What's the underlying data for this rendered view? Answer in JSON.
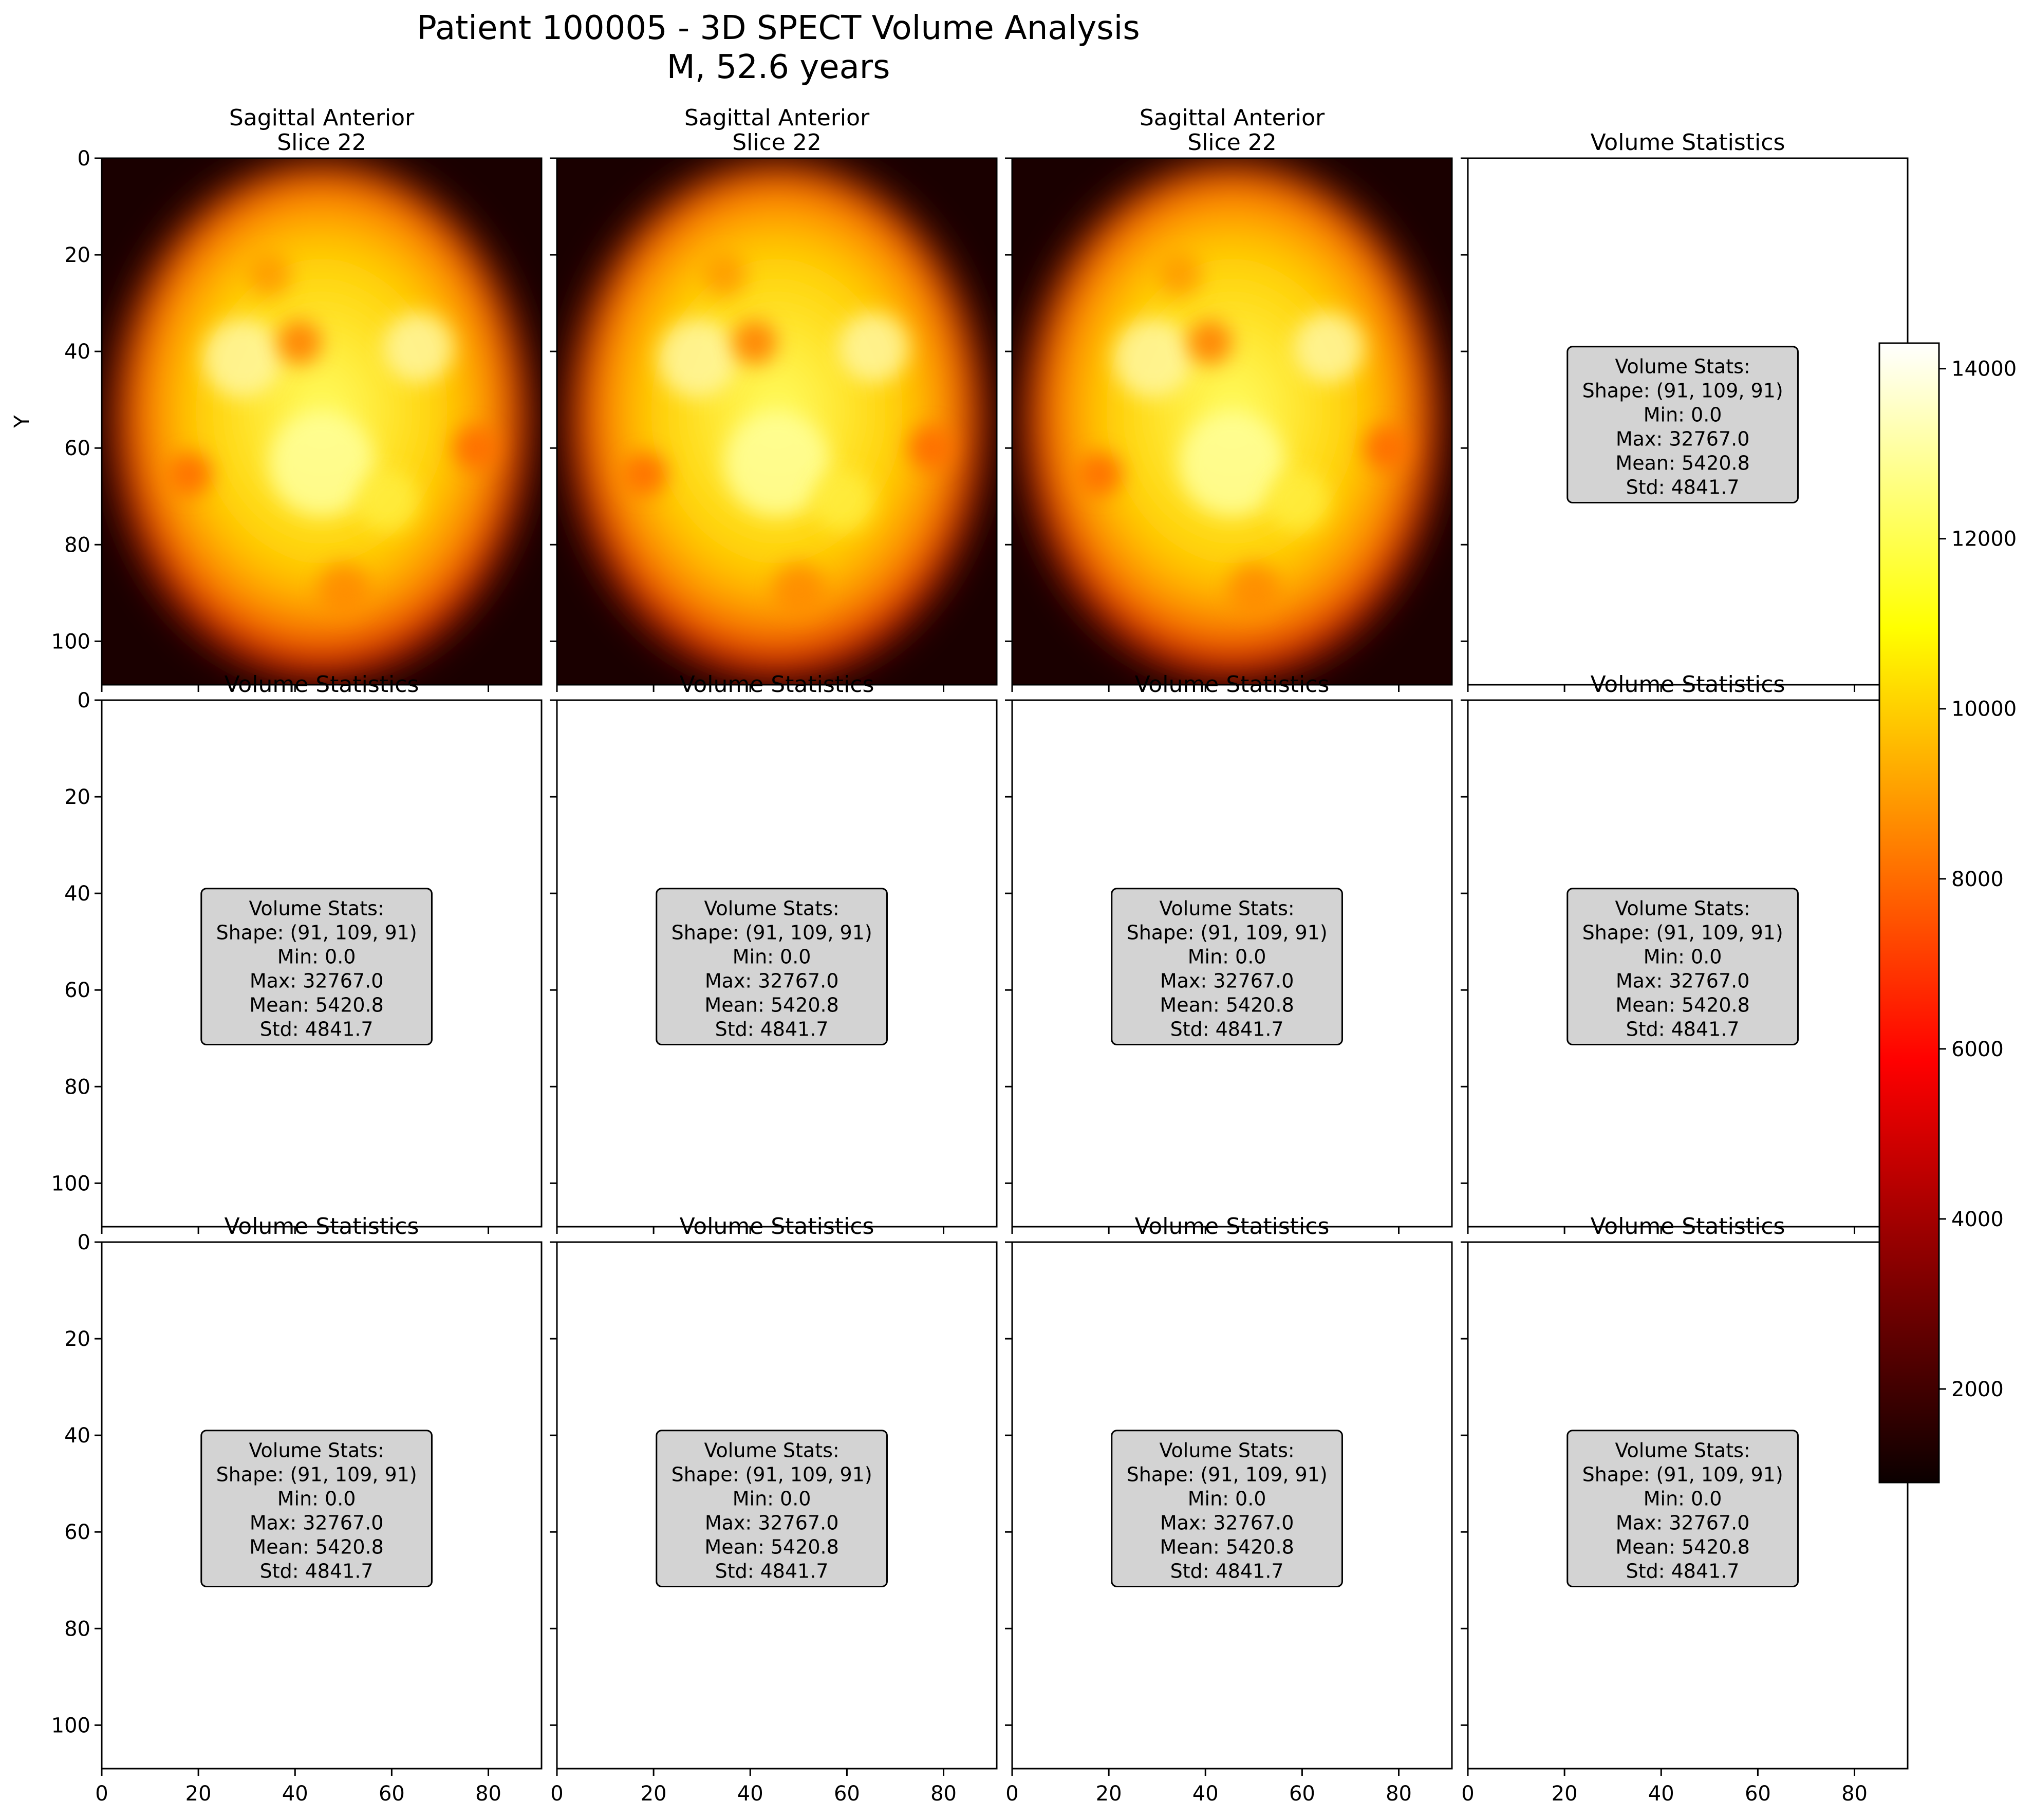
{
  "figure": {
    "title_line1": "Patient 100005 - 3D SPECT Volume Analysis",
    "title_line2": "M, 52.6 years"
  },
  "chart_data": [
    {
      "type": "heatmap",
      "panel": "r0c0",
      "title": [
        "Sagittal Anterior",
        "Slice 22"
      ],
      "ylabel": "Y",
      "xlim": [
        0,
        91
      ],
      "ylim": [
        109,
        0
      ],
      "yticks": [
        0,
        20,
        40,
        60,
        80,
        100
      ],
      "xticks": [],
      "colormap": "hot"
    },
    {
      "type": "heatmap",
      "panel": "r0c1",
      "title": [
        "Sagittal Anterior",
        "Slice 22"
      ],
      "xlim": [
        0,
        91
      ],
      "ylim": [
        109,
        0
      ],
      "colormap": "hot"
    },
    {
      "type": "heatmap",
      "panel": "r0c2",
      "title": [
        "Sagittal Anterior",
        "Slice 22"
      ],
      "xlim": [
        0,
        91
      ],
      "ylim": [
        109,
        0
      ],
      "colormap": "hot"
    },
    {
      "type": "table",
      "panel": "r0c3",
      "title": [
        "Volume Statistics"
      ]
    },
    {
      "type": "table",
      "panel": "r1c0",
      "title": [
        "Volume Statistics"
      ],
      "yticks": [
        0,
        20,
        40,
        60,
        80,
        100
      ]
    },
    {
      "type": "table",
      "panel": "r1c1",
      "title": [
        "Volume Statistics"
      ]
    },
    {
      "type": "table",
      "panel": "r1c2",
      "title": [
        "Volume Statistics"
      ]
    },
    {
      "type": "table",
      "panel": "r1c3",
      "title": [
        "Volume Statistics"
      ]
    },
    {
      "type": "table",
      "panel": "r2c0",
      "title": [
        "Volume Statistics"
      ],
      "yticks": [
        0,
        20,
        40,
        60,
        80,
        100
      ],
      "xticks": [
        0,
        20,
        40,
        60,
        80
      ]
    },
    {
      "type": "table",
      "panel": "r2c1",
      "title": [
        "Volume Statistics"
      ],
      "xticks": [
        0,
        20,
        40,
        60,
        80
      ]
    },
    {
      "type": "table",
      "panel": "r2c2",
      "title": [
        "Volume Statistics"
      ],
      "xticks": [
        0,
        20,
        40,
        60,
        80
      ]
    },
    {
      "type": "table",
      "panel": "r2c3",
      "title": [
        "Volume Statistics"
      ],
      "xticks": [
        0,
        20,
        40,
        60,
        80
      ]
    }
  ],
  "stats_box": {
    "lines": [
      "Volume Stats:",
      "Shape: (91, 109, 91)",
      "Min: 0.0",
      "Max: 32767.0",
      "Mean: 5420.8",
      "Std: 4841.7"
    ],
    "background": "#d3d3d3"
  },
  "colorbar": {
    "colormap": "hot",
    "range": [
      900,
      14300
    ],
    "ticks": [
      2000,
      4000,
      6000,
      8000,
      10000,
      12000,
      14000
    ],
    "tick_labels": [
      "2000",
      "4000",
      "6000",
      "8000",
      "10000",
      "12000",
      "14000"
    ]
  },
  "colors": {
    "text": "#000000",
    "frame": "#000000",
    "box": "#d3d3d3"
  }
}
